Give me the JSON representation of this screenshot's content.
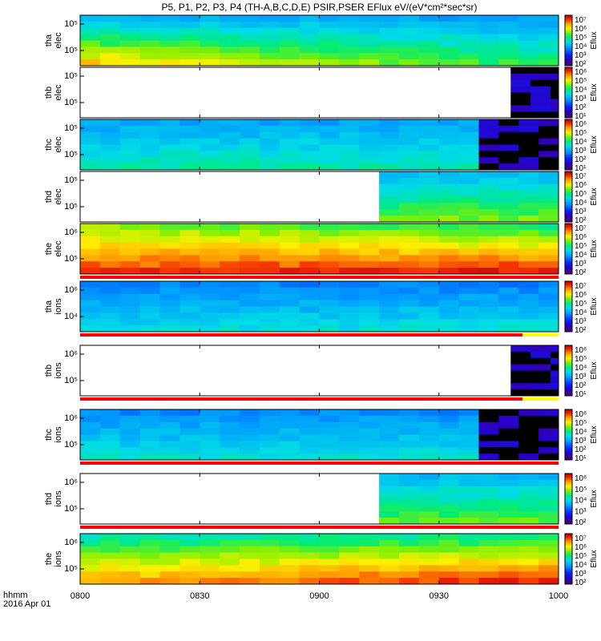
{
  "title": "P5, P1, P2, P3, P4 (TH-A,B,C,D,E) PSIR,PSER EFlux eV/(eV*cm²*sec*sr)",
  "time_axis": {
    "unit_label": "hhmm",
    "date_label": "2016 Apr 01",
    "ticks": [
      "0800",
      "0830",
      "0900",
      "0930",
      "1000"
    ]
  },
  "chart_data": {
    "type": "heatmap",
    "title": "P5, P1, P2, P3, P4 (TH-A,B,C,D,E) PSIR,PSER EFlux eV/(eV*cm²*sec*sr)",
    "x_range": [
      "0800",
      "1000"
    ],
    "x_tick_labels": [
      "0800",
      "0830",
      "0900",
      "0930",
      "1000"
    ],
    "colormap": "rainbow (purple-blue-cyan-green-yellow-red)",
    "colorbar_label": "Eflux",
    "panels": [
      {
        "probe": "tha",
        "species": "elec",
        "ylabel": [
          "tha",
          "elec"
        ],
        "y_ticks": [
          "10⁵",
          "10⁵"
        ],
        "log_energy": true,
        "colorbar_ticks": [
          "10⁷",
          "10⁶",
          "10⁵",
          "10⁴",
          "10³",
          "10²"
        ],
        "data_start": "0800",
        "data_end": "1000",
        "profile_top": [
          3.2,
          2.9
        ],
        "profile_bottom": [
          6.3,
          4.5
        ],
        "state_bar": false
      },
      {
        "probe": "thb",
        "species": "elec",
        "ylabel": [
          "thb",
          "elec"
        ],
        "y_ticks": [
          "10⁵",
          "10⁵"
        ],
        "log_energy": true,
        "colorbar_ticks": [
          "10⁶",
          "10⁵",
          "10⁴",
          "10³",
          "10²",
          "10¹"
        ],
        "data_start": "0948",
        "data_end": "1000",
        "noise": true,
        "profile_top": [
          0.3,
          0.3
        ],
        "profile_bottom": [
          1.6,
          1.6
        ],
        "state_bar": false
      },
      {
        "probe": "thc",
        "species": "elec",
        "ylabel": [
          "thc",
          "elec"
        ],
        "y_ticks": [
          "10⁵",
          "10⁵"
        ],
        "log_energy": true,
        "colorbar_ticks": [
          "10⁶",
          "10⁵",
          "10⁴",
          "10³",
          "10²",
          "10¹"
        ],
        "data_start": "0800",
        "data_end": "1000",
        "noise_after": "0940",
        "profile_top": [
          3.0,
          3.0
        ],
        "profile_bottom": [
          4.2,
          4.2
        ],
        "state_bar": false
      },
      {
        "probe": "thd",
        "species": "elec",
        "ylabel": [
          "thd",
          "elec"
        ],
        "y_ticks": [
          "10⁵",
          "10⁵"
        ],
        "log_energy": true,
        "colorbar_ticks": [
          "10⁷",
          "10⁶",
          "10⁵",
          "10⁴",
          "10³",
          "10²"
        ],
        "data_start": "0915",
        "data_end": "1000",
        "profile_top": [
          3.3,
          3.3
        ],
        "profile_bottom": [
          5.2,
          5.2
        ],
        "state_bar": false
      },
      {
        "probe": "the",
        "species": "elec",
        "ylabel": [
          "the",
          "elec"
        ],
        "y_ticks": [
          "10⁶",
          "10⁵"
        ],
        "log_energy": true,
        "colorbar_ticks": [
          "10⁷",
          "10⁶",
          "10⁵",
          "10⁴",
          "10³",
          "10²"
        ],
        "data_start": "0800",
        "data_end": "1000",
        "profile_top": [
          5.4,
          4.6
        ],
        "profile_bottom": [
          7.4,
          7.6
        ],
        "state_bar": true,
        "state_bar_colors": [
          "#ff0000"
        ]
      },
      {
        "probe": "tha",
        "species": "ions",
        "ylabel": [
          "tha",
          "ions"
        ],
        "y_ticks": [
          "10⁶",
          "10⁴"
        ],
        "log_energy": true,
        "colorbar_ticks": [
          "10⁷",
          "10⁶",
          "10⁵",
          "10⁴",
          "10³",
          "10²"
        ],
        "data_start": "0800",
        "data_end": "1000",
        "profile_top": [
          2.6,
          2.6
        ],
        "profile_bottom": [
          3.8,
          3.8
        ],
        "state_bar": true,
        "state_bar_colors": [
          "#ff0000",
          "#ffff00"
        ],
        "state_bar_switch": "0951"
      },
      {
        "probe": "thb",
        "species": "ions",
        "ylabel": [
          "thb",
          "ions"
        ],
        "y_ticks": [
          "10⁶",
          "10⁵"
        ],
        "log_energy": true,
        "colorbar_ticks": [
          "10⁶",
          "10⁵",
          "10⁴",
          "10³",
          "10²",
          "10¹"
        ],
        "data_start": "0948",
        "data_end": "1000",
        "noise": true,
        "profile_top": [
          0.3,
          0.3
        ],
        "profile_bottom": [
          1.6,
          1.6
        ],
        "state_bar": true,
        "state_bar_colors": [
          "#ff0000",
          "#ffff00"
        ],
        "state_bar_switch": "0951"
      },
      {
        "probe": "thc",
        "species": "ions",
        "ylabel": [
          "thc",
          "ions"
        ],
        "y_ticks": [
          "10⁶",
          "10⁵"
        ],
        "log_energy": true,
        "colorbar_ticks": [
          "10⁶",
          "10⁵",
          "10⁴",
          "10³",
          "10²",
          "10¹"
        ],
        "data_start": "0800",
        "data_end": "1000",
        "noise_after": "0940",
        "profile_top": [
          2.7,
          2.7
        ],
        "profile_bottom": [
          3.9,
          3.9
        ],
        "state_bar": true,
        "state_bar_colors": [
          "#ff0000"
        ]
      },
      {
        "probe": "thd",
        "species": "ions",
        "ylabel": [
          "thd",
          "ions"
        ],
        "y_ticks": [
          "10⁶",
          "10⁵"
        ],
        "log_energy": true,
        "colorbar_ticks": [
          "10⁶",
          "10⁵",
          "10⁴",
          "10³",
          "10²"
        ],
        "data_start": "0915",
        "data_end": "1000",
        "profile_top": [
          3.3,
          3.3
        ],
        "profile_bottom": [
          5.0,
          5.0
        ],
        "state_bar": true,
        "state_bar_colors": [
          "#ff0000"
        ]
      },
      {
        "probe": "the",
        "species": "ions",
        "ylabel": [
          "the",
          "ions"
        ],
        "y_ticks": [
          "10⁶",
          "10⁵"
        ],
        "log_energy": true,
        "colorbar_ticks": [
          "10⁷",
          "10⁶",
          "10⁵",
          "10⁴",
          "10³",
          "10²"
        ],
        "data_start": "0800",
        "data_end": "1000",
        "profile_top": [
          4.2,
          4.5
        ],
        "profile_bottom": [
          6.6,
          7.6
        ],
        "state_bar": false
      }
    ]
  }
}
